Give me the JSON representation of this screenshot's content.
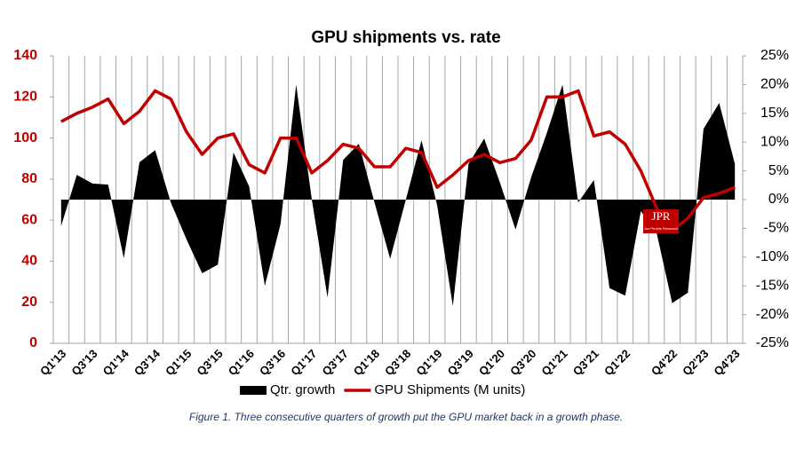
{
  "chart_data": {
    "type": "area-line",
    "title": "GPU shipments vs. rate",
    "categories": [
      "Q1'13",
      null,
      "Q3'13",
      null,
      "Q1'14",
      null,
      "Q3'14",
      null,
      "Q1'15",
      null,
      "Q3'15",
      null,
      "Q1'16",
      null,
      "Q3'16",
      null,
      "Q1'17",
      null,
      "Q3'17",
      null,
      "Q1'18",
      null,
      "Q3'18",
      null,
      "Q1'19",
      null,
      "Q3'19",
      null,
      "Q1'20",
      null,
      "Q3'20",
      null,
      "Q1'21",
      null,
      "Q3'21",
      null,
      "Q1'22",
      null,
      null,
      "Q4'22",
      null,
      "Q2'23",
      null,
      "Q4'23"
    ],
    "series": [
      {
        "name": "Qtr. growth",
        "color": "#000000",
        "axis": "y2",
        "values": [
          -4.6,
          4.3,
          2.8,
          2.6,
          -10.2,
          6.5,
          8.6,
          -0.5,
          -6.9,
          -12.8,
          -11.3,
          8.2,
          2.3,
          -15,
          -4.3,
          20,
          0,
          -17,
          6.9,
          9.7,
          -0.5,
          -10.3,
          0,
          10.3,
          -1,
          -18.5,
          6.2,
          10.6,
          3,
          -5.2,
          3.9,
          11.6,
          20,
          -0.5,
          3.4,
          -15.4,
          -16.7,
          -2,
          -5.7,
          -18,
          -16.2,
          12.3,
          16.8,
          6.2
        ]
      },
      {
        "name": "GPU Shipments (M units)",
        "color": "#c00000",
        "values": [
          108,
          112,
          115,
          119,
          107,
          113,
          123,
          119,
          103,
          92,
          100,
          102,
          87,
          83,
          100,
          100,
          83,
          89,
          97,
          95,
          86,
          86,
          95,
          93,
          76,
          82,
          89,
          92,
          88,
          90,
          99,
          120,
          120,
          123,
          101,
          103,
          97,
          84,
          66,
          55,
          61,
          71,
          73,
          76
        ]
      }
    ],
    "ylim": [
      0,
      140
    ],
    "yticks": [
      0,
      20,
      40,
      60,
      80,
      100,
      120,
      140
    ],
    "y2lim": [
      -25,
      25
    ],
    "y2ticks": [
      {
        "value": -25,
        "label": "-25%"
      },
      {
        "value": -20,
        "label": "-20%"
      },
      {
        "value": -15,
        "label": "-15%"
      },
      {
        "value": -10,
        "label": "-10%"
      },
      {
        "value": -5,
        "label": "-5%"
      },
      {
        "value": 0,
        "label": "0%"
      },
      {
        "value": 5,
        "label": "5%"
      },
      {
        "value": 10,
        "label": "10%"
      },
      {
        "value": 15,
        "label": "15%"
      },
      {
        "value": 20,
        "label": "20%"
      },
      {
        "value": 25,
        "label": "25%"
      }
    ],
    "xgrid": true,
    "legend": "bottom",
    "caption": "Figure 1. Three consecutive quarters of growth put the GPU market back in a growth phase.",
    "logo": {
      "text": "JPR",
      "subtext": "Jon Peddie Research"
    }
  }
}
